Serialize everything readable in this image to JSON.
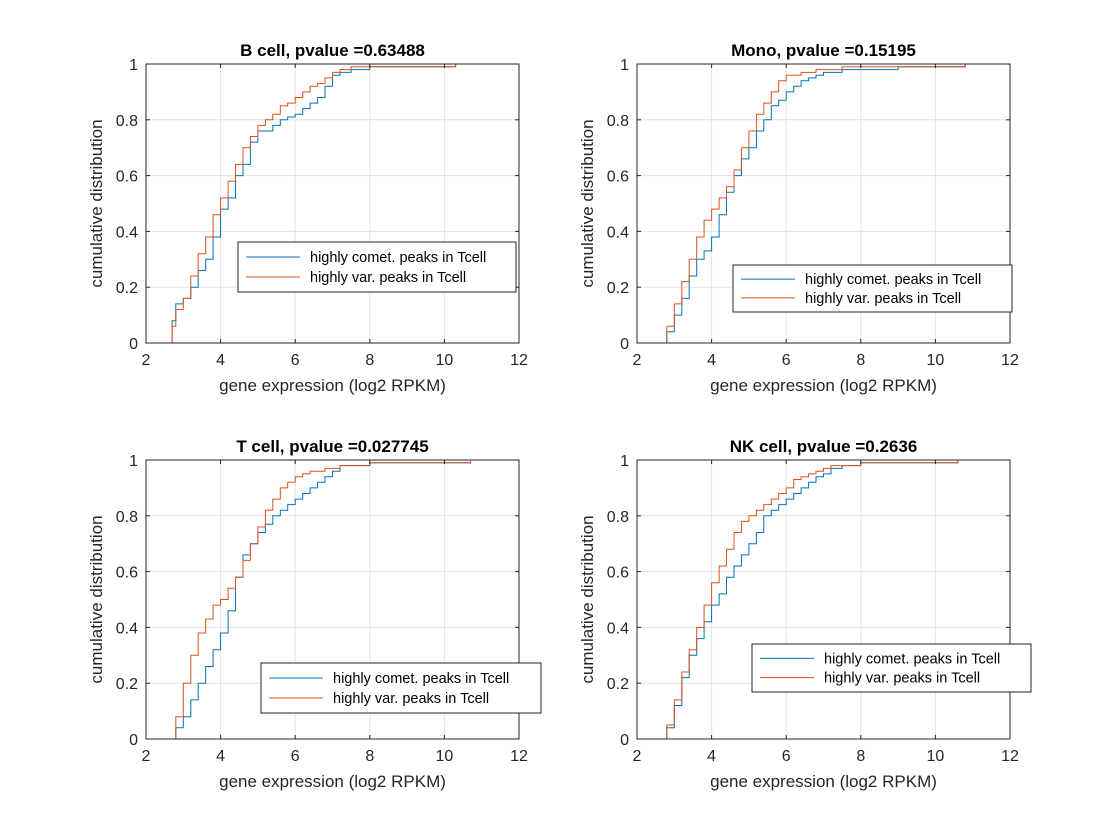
{
  "figure": {
    "xlabel": "gene expression (log2 RPKM)",
    "ylabel": "cumulative distribution"
  },
  "chart_data": [
    {
      "type": "line",
      "title": "B cell, pvalue =0.63488",
      "xlabel": "gene expression (log2 RPKM)",
      "ylabel": "cumulative distribution",
      "xlim": [
        2,
        12
      ],
      "ylim": [
        0,
        1
      ],
      "xticks": [
        2,
        4,
        6,
        8,
        10,
        12
      ],
      "yticks": [
        0,
        0.2,
        0.4,
        0.6,
        0.8,
        1
      ],
      "grid": true,
      "legend_position": "middle-right",
      "series": [
        {
          "name": "highly comet. peaks in Tcell",
          "color": "#0072BD",
          "x": [
            2.62,
            2.7,
            2.8,
            3.0,
            3.2,
            3.4,
            3.6,
            3.8,
            4.0,
            4.2,
            4.4,
            4.6,
            4.8,
            5.0,
            5.2,
            5.4,
            5.6,
            5.8,
            6.0,
            6.2,
            6.4,
            6.6,
            6.8,
            7.0,
            7.2,
            7.5,
            8.0,
            8.5,
            9.5,
            10.3
          ],
          "y": [
            0.0,
            0.08,
            0.14,
            0.16,
            0.2,
            0.26,
            0.3,
            0.38,
            0.48,
            0.52,
            0.6,
            0.64,
            0.72,
            0.76,
            0.76,
            0.78,
            0.8,
            0.81,
            0.82,
            0.84,
            0.86,
            0.88,
            0.92,
            0.96,
            0.97,
            0.98,
            0.99,
            0.99,
            0.99,
            1.0
          ]
        },
        {
          "name": "highly var. peaks in Tcell",
          "color": "#D95319",
          "x": [
            2.62,
            2.7,
            2.8,
            3.0,
            3.2,
            3.4,
            3.6,
            3.8,
            4.0,
            4.2,
            4.4,
            4.6,
            4.8,
            5.0,
            5.2,
            5.4,
            5.6,
            5.8,
            6.0,
            6.2,
            6.4,
            6.6,
            6.8,
            7.0,
            7.2,
            7.5,
            8.0,
            8.5,
            9.5,
            10.3
          ],
          "y": [
            0.0,
            0.06,
            0.12,
            0.16,
            0.24,
            0.32,
            0.38,
            0.46,
            0.52,
            0.58,
            0.64,
            0.7,
            0.74,
            0.78,
            0.8,
            0.82,
            0.85,
            0.86,
            0.88,
            0.9,
            0.92,
            0.93,
            0.95,
            0.97,
            0.98,
            0.99,
            0.99,
            0.99,
            0.99,
            1.0
          ]
        }
      ]
    },
    {
      "type": "line",
      "title": "Mono, pvalue =0.15195",
      "xlabel": "gene expression (log2 RPKM)",
      "ylabel": "cumulative distribution",
      "xlim": [
        2,
        12
      ],
      "ylim": [
        0,
        1
      ],
      "xticks": [
        2,
        4,
        6,
        8,
        10,
        12
      ],
      "yticks": [
        0,
        0.2,
        0.4,
        0.6,
        0.8,
        1
      ],
      "grid": true,
      "legend_position": "bottom-right",
      "series": [
        {
          "name": "highly comet. peaks in Tcell",
          "color": "#0072BD",
          "x": [
            2.65,
            2.8,
            3.0,
            3.2,
            3.4,
            3.6,
            3.8,
            4.0,
            4.2,
            4.4,
            4.6,
            4.8,
            5.0,
            5.2,
            5.4,
            5.6,
            5.8,
            6.0,
            6.2,
            6.4,
            6.6,
            6.8,
            7.0,
            7.5,
            8.0,
            9.0,
            10.0,
            10.8
          ],
          "y": [
            0.0,
            0.04,
            0.1,
            0.16,
            0.24,
            0.3,
            0.33,
            0.38,
            0.46,
            0.54,
            0.6,
            0.66,
            0.7,
            0.76,
            0.8,
            0.85,
            0.87,
            0.9,
            0.92,
            0.94,
            0.95,
            0.96,
            0.97,
            0.98,
            0.98,
            0.99,
            0.99,
            1.0
          ]
        },
        {
          "name": "highly var. peaks in Tcell",
          "color": "#D95319",
          "x": [
            2.6,
            2.8,
            3.0,
            3.2,
            3.4,
            3.6,
            3.8,
            4.0,
            4.2,
            4.4,
            4.6,
            4.8,
            5.0,
            5.2,
            5.4,
            5.6,
            5.8,
            6.0,
            6.2,
            6.4,
            6.6,
            6.8,
            7.0,
            7.5,
            8.0,
            9.0,
            10.0,
            10.8
          ],
          "y": [
            0.0,
            0.06,
            0.14,
            0.22,
            0.3,
            0.38,
            0.44,
            0.48,
            0.52,
            0.56,
            0.62,
            0.7,
            0.76,
            0.82,
            0.86,
            0.9,
            0.94,
            0.96,
            0.96,
            0.97,
            0.97,
            0.98,
            0.98,
            0.99,
            0.99,
            0.99,
            0.99,
            1.0
          ]
        }
      ]
    },
    {
      "type": "line",
      "title": "T cell, pvalue =0.027745",
      "xlabel": "gene expression (log2 RPKM)",
      "ylabel": "cumulative distribution",
      "xlim": [
        2,
        12
      ],
      "ylim": [
        0,
        1
      ],
      "xticks": [
        2,
        4,
        6,
        8,
        10,
        12
      ],
      "yticks": [
        0,
        0.2,
        0.4,
        0.6,
        0.8,
        1
      ],
      "grid": true,
      "legend_position": "bottom-right",
      "series": [
        {
          "name": "highly comet. peaks in Tcell",
          "color": "#0072BD",
          "x": [
            2.7,
            2.8,
            3.0,
            3.2,
            3.4,
            3.6,
            3.8,
            4.0,
            4.2,
            4.4,
            4.6,
            4.8,
            5.0,
            5.2,
            5.4,
            5.6,
            5.8,
            6.0,
            6.2,
            6.4,
            6.6,
            6.8,
            7.0,
            7.2,
            7.5,
            8.0,
            9.0,
            10.7
          ],
          "y": [
            0.0,
            0.04,
            0.08,
            0.14,
            0.2,
            0.26,
            0.32,
            0.38,
            0.46,
            0.58,
            0.66,
            0.7,
            0.74,
            0.77,
            0.8,
            0.82,
            0.84,
            0.86,
            0.88,
            0.9,
            0.92,
            0.94,
            0.96,
            0.98,
            0.98,
            0.99,
            0.99,
            1.0
          ]
        },
        {
          "name": "highly var. peaks in Tcell",
          "color": "#D95319",
          "x": [
            2.6,
            2.8,
            3.0,
            3.2,
            3.4,
            3.6,
            3.8,
            4.0,
            4.2,
            4.4,
            4.6,
            4.8,
            5.0,
            5.2,
            5.4,
            5.6,
            5.8,
            6.0,
            6.2,
            6.4,
            6.6,
            6.8,
            7.0,
            7.2,
            7.5,
            8.0,
            9.0,
            10.7
          ],
          "y": [
            0.0,
            0.08,
            0.2,
            0.3,
            0.38,
            0.43,
            0.48,
            0.5,
            0.54,
            0.58,
            0.64,
            0.7,
            0.76,
            0.82,
            0.86,
            0.9,
            0.92,
            0.94,
            0.95,
            0.96,
            0.96,
            0.97,
            0.97,
            0.98,
            0.98,
            0.99,
            0.99,
            1.0
          ]
        }
      ]
    },
    {
      "type": "line",
      "title": "NK cell, pvalue =0.2636",
      "xlabel": "gene expression (log2 RPKM)",
      "ylabel": "cumulative distribution",
      "xlim": [
        2,
        12
      ],
      "ylim": [
        0,
        1
      ],
      "xticks": [
        2,
        4,
        6,
        8,
        10,
        12
      ],
      "yticks": [
        0,
        0.2,
        0.4,
        0.6,
        0.8,
        1
      ],
      "grid": true,
      "legend_position": "bottom-right",
      "series": [
        {
          "name": "highly comet. peaks in Tcell",
          "color": "#0072BD",
          "x": [
            2.7,
            2.8,
            3.0,
            3.2,
            3.4,
            3.6,
            3.8,
            4.0,
            4.2,
            4.4,
            4.6,
            4.8,
            5.0,
            5.2,
            5.4,
            5.6,
            5.8,
            6.0,
            6.2,
            6.4,
            6.6,
            6.8,
            7.0,
            7.2,
            7.5,
            8.0,
            9.0,
            10.6
          ],
          "y": [
            0.0,
            0.04,
            0.12,
            0.22,
            0.3,
            0.36,
            0.42,
            0.48,
            0.52,
            0.58,
            0.62,
            0.66,
            0.7,
            0.74,
            0.8,
            0.82,
            0.84,
            0.86,
            0.88,
            0.9,
            0.92,
            0.94,
            0.95,
            0.97,
            0.98,
            0.99,
            0.99,
            1.0
          ]
        },
        {
          "name": "highly var. peaks in Tcell",
          "color": "#D95319",
          "x": [
            2.7,
            2.8,
            3.0,
            3.2,
            3.4,
            3.6,
            3.8,
            4.0,
            4.2,
            4.4,
            4.6,
            4.8,
            5.0,
            5.2,
            5.4,
            5.6,
            5.8,
            6.0,
            6.2,
            6.4,
            6.6,
            6.8,
            7.0,
            7.2,
            7.5,
            8.0,
            9.0,
            10.6
          ],
          "y": [
            0.0,
            0.05,
            0.14,
            0.24,
            0.32,
            0.4,
            0.48,
            0.56,
            0.62,
            0.68,
            0.74,
            0.78,
            0.8,
            0.82,
            0.84,
            0.86,
            0.88,
            0.9,
            0.93,
            0.94,
            0.95,
            0.96,
            0.97,
            0.98,
            0.98,
            0.99,
            0.99,
            1.0
          ]
        }
      ]
    }
  ]
}
